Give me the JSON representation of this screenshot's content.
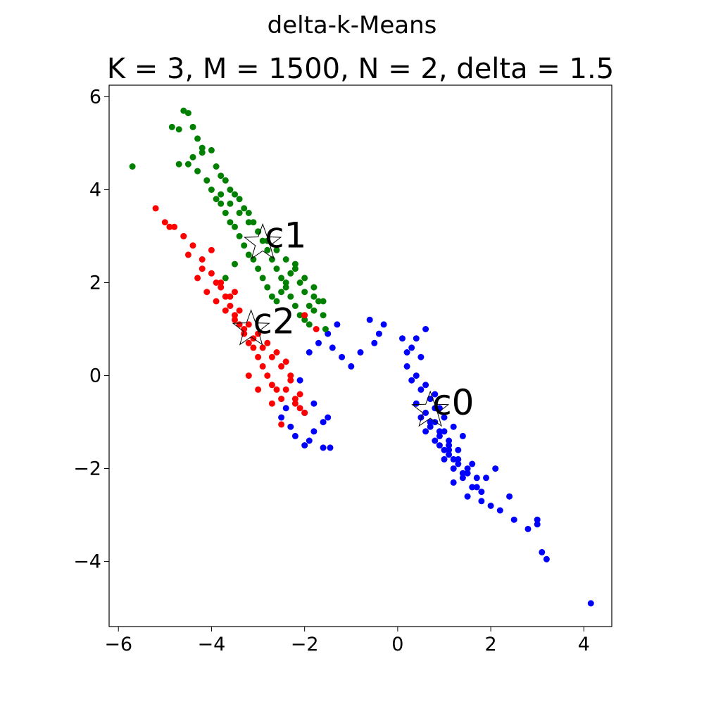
{
  "chart_data": {
    "type": "scatter",
    "suptitle": "delta-k-Means",
    "title": "K = 3, M = 1500, N = 2, delta = 1.5",
    "xlabel": "",
    "ylabel": "",
    "xlim": [
      -6.2,
      4.6
    ],
    "ylim": [
      -5.4,
      6.25
    ],
    "xticks": [
      -6,
      -4,
      -2,
      0,
      2,
      4
    ],
    "yticks": [
      -4,
      -2,
      0,
      2,
      4,
      6
    ],
    "xtick_labels": [
      "−6",
      "−4",
      "−2",
      "0",
      "2",
      "4"
    ],
    "ytick_labels": [
      "−4",
      "−2",
      "0",
      "2",
      "4",
      "6"
    ],
    "grid": false,
    "series": [
      {
        "color": "#0000ff",
        "x": [
          0.1,
          0.3,
          0.5,
          0.2,
          0.4,
          0.6,
          0.8,
          0.3,
          0.5,
          0.7,
          0.9,
          0.4,
          0.6,
          0.8,
          1.0,
          0.5,
          0.7,
          0.9,
          1.1,
          0.6,
          0.8,
          1.0,
          1.2,
          0.7,
          0.9,
          1.1,
          1.3,
          0.8,
          1.0,
          1.2,
          1.4,
          0.9,
          1.1,
          1.3,
          1.5,
          1.0,
          1.2,
          1.4,
          1.6,
          1.1,
          1.3,
          1.5,
          1.7,
          1.2,
          1.4,
          1.6,
          1.8,
          1.5,
          1.7,
          1.9,
          2.1,
          1.8,
          2.0,
          2.2,
          2.4,
          2.5,
          2.8,
          3.0,
          3.1,
          3.0,
          3.2,
          4.15,
          -0.6,
          -0.4,
          -0.3,
          -0.5,
          -0.8,
          -1.0,
          -1.2,
          -1.4,
          -1.3,
          -1.5,
          -1.7,
          -1.9,
          -2.1,
          -1.6,
          -1.8,
          -1.9,
          -2.0,
          -2.2,
          -2.3,
          -2.5,
          -2.4,
          -2.0,
          -1.6,
          -1.45,
          -1.5,
          -1.8,
          0.2,
          0.4,
          0.6
        ],
        "y": [
          0.8,
          0.6,
          0.4,
          0.2,
          0.0,
          -0.2,
          -0.4,
          -0.1,
          -0.3,
          -0.5,
          -0.7,
          -0.6,
          -0.8,
          -1.0,
          -1.2,
          -0.9,
          -1.1,
          -1.3,
          -1.5,
          -1.2,
          -1.4,
          -1.6,
          -1.8,
          -1.0,
          -1.2,
          -1.4,
          -1.6,
          -0.7,
          -0.9,
          -1.1,
          -1.3,
          -1.5,
          -1.7,
          -1.9,
          -2.1,
          -1.8,
          -2.0,
          -2.2,
          -2.4,
          -1.6,
          -1.8,
          -2.0,
          -2.2,
          -2.3,
          -2.1,
          -1.9,
          -2.5,
          -2.6,
          -2.4,
          -2.2,
          -2.0,
          -2.7,
          -2.8,
          -2.9,
          -2.6,
          -3.1,
          -3.3,
          -3.2,
          -3.8,
          -3.1,
          -3.95,
          -4.9,
          1.2,
          0.9,
          1.1,
          0.7,
          0.5,
          0.2,
          0.4,
          0.6,
          1.1,
          0.9,
          0.7,
          0.5,
          -0.1,
          -1.0,
          -1.2,
          -1.4,
          -1.5,
          -1.3,
          -1.1,
          -0.9,
          -0.7,
          -0.8,
          -1.55,
          -1.55,
          -0.9,
          -0.6,
          0.5,
          0.8,
          1.0
        ]
      },
      {
        "color": "#008000",
        "x": [
          -4.6,
          -4.5,
          -4.85,
          -4.7,
          -4.7,
          -4.4,
          -4.3,
          -4.2,
          -4.0,
          -4.5,
          -3.9,
          -3.8,
          -3.7,
          -3.6,
          -3.5,
          -3.4,
          -3.3,
          -3.2,
          -3.1,
          -3.0,
          -2.9,
          -2.8,
          -2.7,
          -2.6,
          -2.5,
          -2.4,
          -2.3,
          -2.2,
          -2.1,
          -2.0,
          -1.9,
          -1.8,
          -1.7,
          -1.6,
          -1.55,
          -4.1,
          -4.0,
          -3.9,
          -3.8,
          -3.7,
          -3.6,
          -3.5,
          -3.4,
          -3.3,
          -3.2,
          -3.1,
          -3.0,
          -2.9,
          -2.8,
          -2.7,
          -2.6,
          -2.5,
          -2.4,
          -2.3,
          -2.2,
          -2.1,
          -2.0,
          -1.9,
          -1.8,
          -3.8,
          -3.6,
          -3.4,
          -3.2,
          -3.0,
          -2.8,
          -2.6,
          -2.4,
          -2.2,
          -2.0,
          -1.8,
          -1.6,
          -4.3,
          -4.4,
          -5.7,
          -3.5,
          -3.7,
          -4.2
        ],
        "y": [
          5.7,
          5.65,
          5.35,
          5.3,
          4.55,
          5.35,
          5.1,
          4.9,
          4.85,
          4.55,
          4.5,
          4.3,
          4.2,
          4.0,
          3.9,
          3.8,
          3.6,
          3.5,
          3.3,
          3.1,
          2.9,
          2.7,
          2.5,
          2.3,
          2.1,
          1.9,
          1.7,
          1.5,
          1.3,
          1.2,
          1.1,
          1.4,
          1.6,
          1.3,
          1.0,
          4.2,
          4.0,
          3.8,
          3.7,
          3.5,
          3.3,
          3.2,
          3.0,
          2.8,
          2.6,
          2.5,
          2.3,
          2.1,
          1.9,
          1.7,
          1.6,
          1.8,
          2.0,
          2.2,
          2.4,
          2.0,
          1.8,
          1.5,
          1.7,
          3.9,
          3.7,
          3.5,
          3.3,
          3.1,
          2.9,
          2.7,
          2.5,
          2.3,
          2.1,
          1.9,
          1.6,
          4.4,
          4.7,
          4.5,
          2.4,
          2.1,
          4.8
        ]
      },
      {
        "color": "#ff0000",
        "x": [
          -5.2,
          -5.0,
          -4.8,
          -4.6,
          -4.4,
          -4.2,
          -4.0,
          -3.9,
          -3.8,
          -3.7,
          -3.6,
          -3.5,
          -3.4,
          -3.3,
          -3.2,
          -3.1,
          -3.0,
          -2.9,
          -2.8,
          -2.7,
          -2.6,
          -2.5,
          -2.4,
          -2.3,
          -2.2,
          -2.1,
          -2.0,
          -4.3,
          -4.1,
          -3.9,
          -3.7,
          -3.5,
          -3.3,
          -3.1,
          -2.9,
          -2.7,
          -2.5,
          -2.3,
          -2.1,
          -4.5,
          -4.2,
          -3.8,
          -3.6,
          -3.4,
          -3.2,
          -3.0,
          -2.8,
          -2.6,
          -2.4,
          -2.2,
          -2.5,
          -2.7,
          -3.0,
          -3.2,
          -1.75,
          -2.0,
          -4.9,
          -4.6,
          -4.0,
          -3.5
        ],
        "y": [
          3.6,
          3.3,
          3.2,
          3.0,
          2.8,
          2.5,
          2.2,
          2.0,
          1.9,
          1.7,
          1.5,
          1.3,
          1.1,
          0.9,
          0.7,
          0.6,
          0.4,
          0.2,
          0.0,
          -0.2,
          -0.3,
          -0.5,
          -0.3,
          -0.1,
          -0.5,
          -0.7,
          -0.8,
          2.1,
          1.8,
          1.6,
          1.4,
          1.2,
          1.0,
          0.8,
          0.6,
          0.4,
          0.2,
          0.0,
          -0.4,
          2.6,
          2.3,
          2.0,
          1.7,
          1.4,
          1.1,
          0.9,
          0.7,
          0.5,
          0.3,
          -0.6,
          -1.05,
          -0.6,
          -0.3,
          0.0,
          1.0,
          1.3,
          3.2,
          3.0,
          2.7,
          1.8
        ]
      }
    ],
    "centroids": [
      {
        "label": "c0",
        "x": 0.7,
        "y": -0.75
      },
      {
        "label": "c1",
        "x": -2.9,
        "y": 2.85
      },
      {
        "label": "c2",
        "x": -3.15,
        "y": 1.0
      }
    ]
  }
}
